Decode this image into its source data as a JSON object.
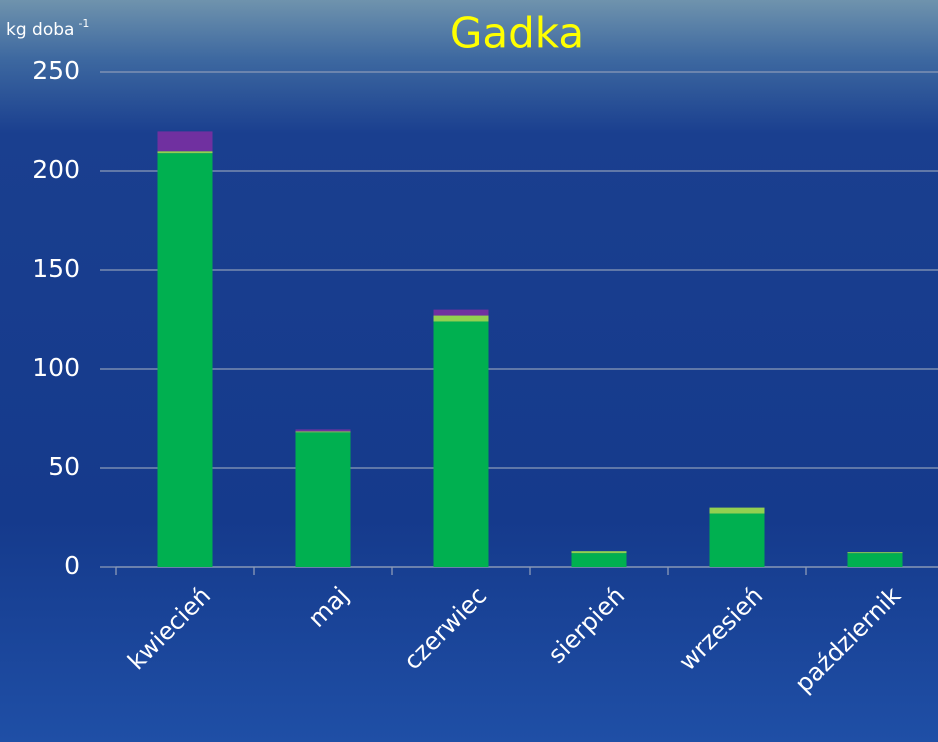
{
  "chart_data": {
    "type": "stacked_bar",
    "title": "Gadka",
    "y_label": "kg doba",
    "y_label_sup": "-1",
    "categories": [
      "kwiecień",
      "maj",
      "czerwiec",
      "sierpień",
      "wrzesień",
      "październik"
    ],
    "series": [
      {
        "color": "#00b050",
        "values": [
          209,
          68,
          124,
          7,
          27,
          7
        ]
      },
      {
        "color": "#92d050",
        "values": [
          1,
          0.5,
          3,
          1,
          3,
          0.5
        ]
      },
      {
        "color": "#7030a0",
        "values": [
          10,
          1,
          3,
          0,
          0,
          0
        ]
      }
    ],
    "ylim": [
      0,
      250
    ],
    "yticks": [
      0,
      50,
      100,
      150,
      200,
      250
    ],
    "grid": true
  }
}
